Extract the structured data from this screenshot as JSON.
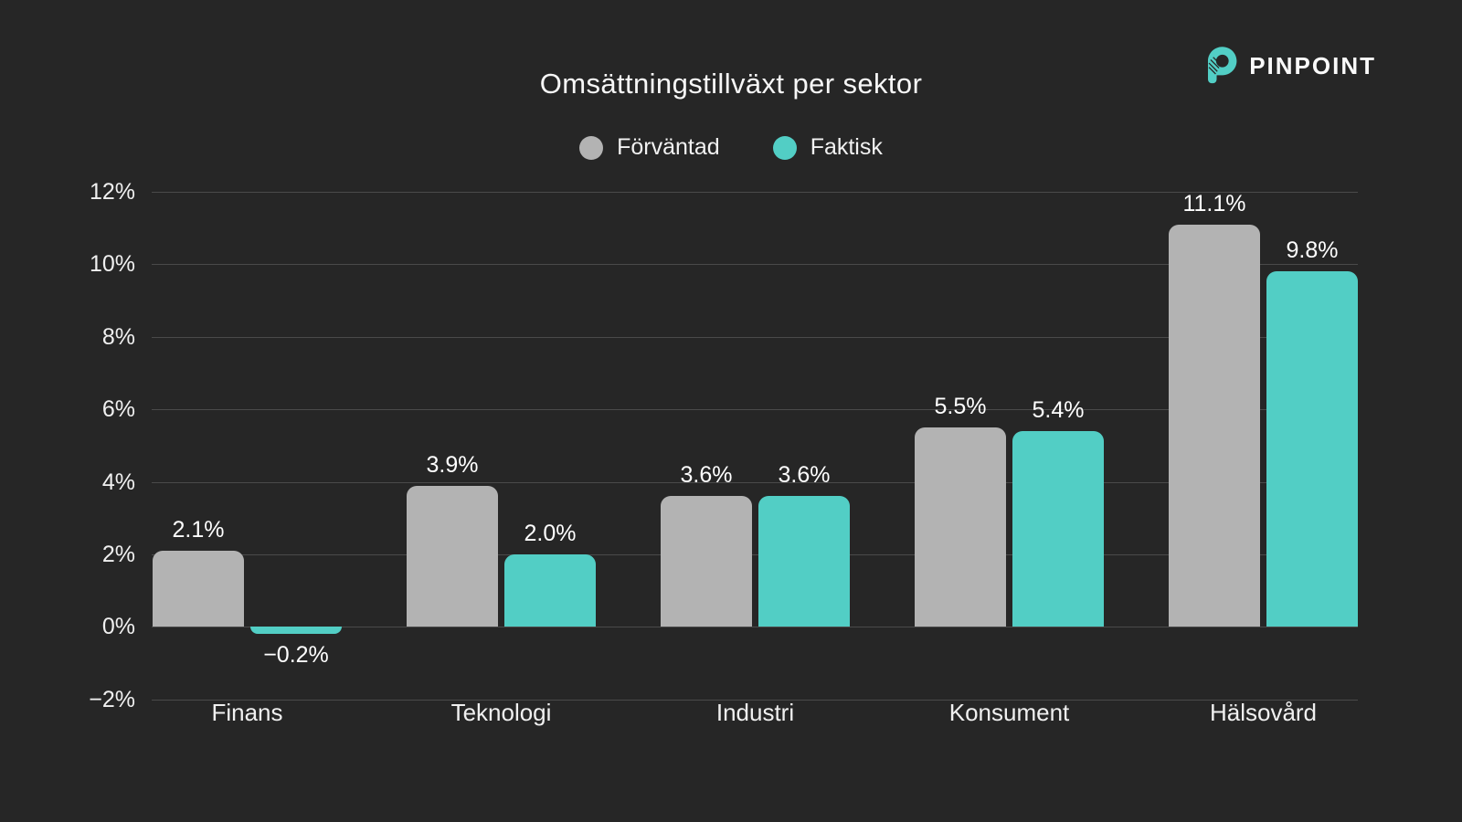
{
  "page": {
    "background_color": "#262626"
  },
  "brand": {
    "name": "PINPOINT",
    "logo_color": "#52cec5"
  },
  "chart_data": {
    "type": "bar",
    "title": "Omsättningstillväxt per sektor",
    "categories": [
      "Finans",
      "Teknologi",
      "Industri",
      "Konsument",
      "Hälsovård"
    ],
    "series": [
      {
        "name": "Förväntad",
        "color": "#b3b3b3",
        "values": [
          2.1,
          3.9,
          3.6,
          5.5,
          11.1
        ],
        "labels": [
          "2.1%",
          "3.9%",
          "3.6%",
          "5.5%",
          "11.1%"
        ]
      },
      {
        "name": "Faktisk",
        "color": "#52cec5",
        "values": [
          -0.2,
          2.0,
          3.6,
          5.4,
          9.8
        ],
        "labels": [
          "−0.2%",
          "2.0%",
          "3.6%",
          "5.4%",
          "9.8%"
        ]
      }
    ],
    "y_axis": {
      "tick_labels": [
        "12%",
        "10%",
        "8%",
        "6%",
        "4%",
        "2%",
        "0%",
        "−2%"
      ],
      "tick_values": [
        12,
        10,
        8,
        6,
        4,
        2,
        0,
        -2
      ],
      "ylim": [
        -2,
        12
      ]
    },
    "xlabel": "",
    "ylabel": "",
    "grid": true,
    "gridline_color": "#4a4a4a",
    "legend_position": "top"
  }
}
